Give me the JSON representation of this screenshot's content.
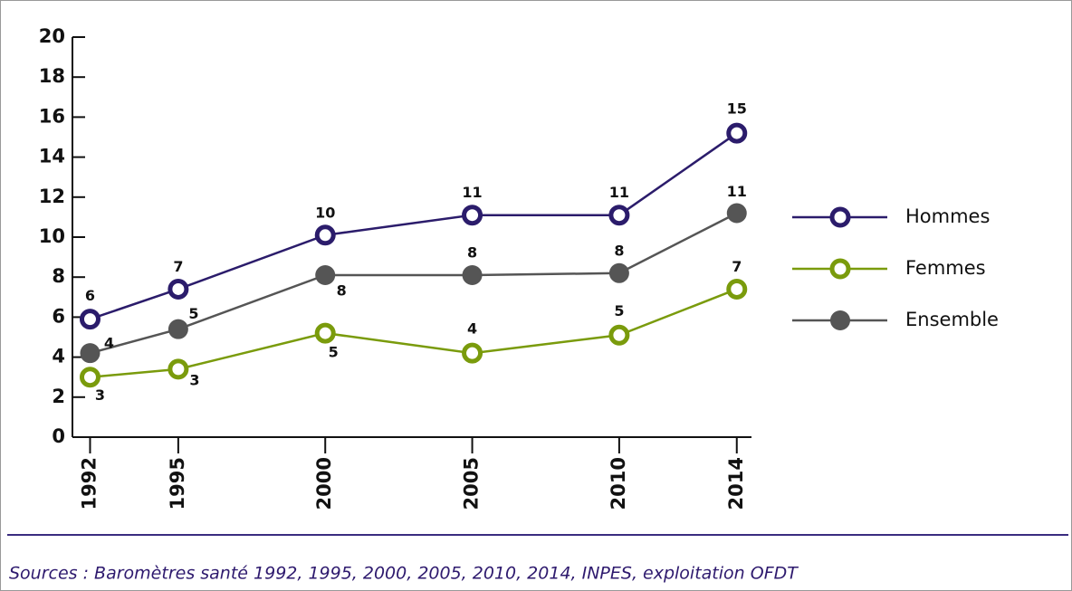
{
  "chart_data": {
    "type": "line",
    "x": [
      1992,
      1995,
      2000,
      2005,
      2010,
      2014
    ],
    "series": [
      {
        "name": "Hommes",
        "color": "#2b1c6b",
        "filled": false,
        "values": [
          5.9,
          7.4,
          10.1,
          11.1,
          11.1,
          15.2
        ],
        "value_labels": [
          "6",
          "7",
          "10",
          "11",
          "11",
          "15"
        ]
      },
      {
        "name": "Femmes",
        "color": "#7a9b0c",
        "filled": false,
        "values": [
          3.0,
          3.4,
          5.2,
          4.2,
          5.1,
          7.4
        ],
        "value_labels": [
          "3",
          "3",
          "5",
          "4",
          "5",
          "7"
        ]
      },
      {
        "name": "Ensemble",
        "color": "#555555",
        "filled": true,
        "values": [
          4.2,
          5.4,
          8.1,
          8.1,
          8.2,
          11.2
        ],
        "value_labels": [
          "4",
          "5",
          "8",
          "8",
          "8",
          "11"
        ]
      }
    ],
    "xlim": [
      1991.4,
      2014.5
    ],
    "xticks": [
      1992,
      1995,
      2000,
      2005,
      2010,
      2014
    ],
    "ylim": [
      0,
      20
    ],
    "yticks": [
      0,
      2,
      4,
      6,
      8,
      10,
      12,
      14,
      16,
      18,
      20
    ],
    "source": "Sources : Baromètres santé 1992, 1995, 2000, 2005, 2010, 2014, INPES, exploitation OFDT"
  }
}
